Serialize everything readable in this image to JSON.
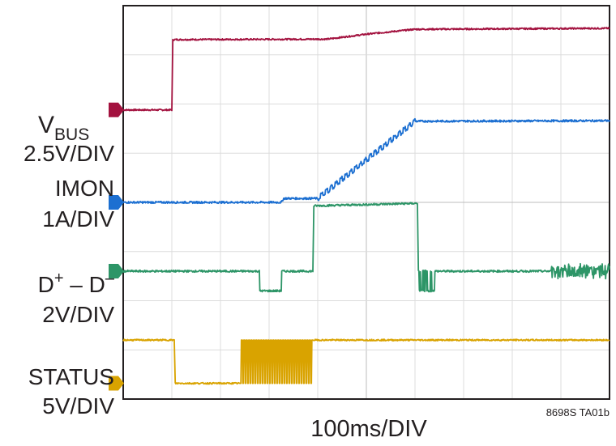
{
  "chart_data": {
    "type": "line",
    "title": "",
    "xlabel": "100ms/DIV",
    "footnote": "8698S TA01b",
    "grid": true,
    "x_divisions": 10,
    "y_divisions": 8,
    "xlim": [
      0,
      10
    ],
    "ylim": [
      0,
      8
    ],
    "series": [
      {
        "key": "vbus",
        "name_main": "V",
        "name_sub": "BUS",
        "scale": "2.5V/DIV",
        "color": "#a3123f",
        "marker_y": 5.88,
        "points": [
          [
            0,
            5.88
          ],
          [
            1.0,
            5.88
          ],
          [
            1.02,
            7.3
          ],
          [
            1.05,
            7.31
          ],
          [
            4.2,
            7.32
          ],
          [
            5.0,
            7.42
          ],
          [
            6.0,
            7.52
          ],
          [
            10,
            7.54
          ]
        ],
        "noise": 0.015
      },
      {
        "key": "imon",
        "name_main": "IMON",
        "scale": "1A/DIV",
        "color": "#1c6fd1",
        "marker_y": 4.0,
        "points": [
          [
            0,
            4.0
          ],
          [
            3.25,
            4.0
          ],
          [
            3.3,
            4.08
          ],
          [
            4.0,
            4.08
          ],
          [
            6.0,
            5.65
          ],
          [
            10,
            5.66
          ]
        ],
        "noise": 0.02
      },
      {
        "key": "dpdm",
        "name_main": "D",
        "name_sup1": "+",
        "name_mid": " – D",
        "name_sup2": "–",
        "scale": "2V/DIV",
        "color": "#2d9567",
        "marker_y": 2.6,
        "points": [
          [
            0,
            2.6
          ],
          [
            2.8,
            2.6
          ],
          [
            2.8,
            2.2
          ],
          [
            3.25,
            2.2
          ],
          [
            3.25,
            2.6
          ],
          [
            3.9,
            2.6
          ],
          [
            3.92,
            3.93
          ],
          [
            6.05,
            3.98
          ],
          [
            6.07,
            2.6
          ],
          [
            10,
            2.6
          ]
        ],
        "noise": 0.02
      },
      {
        "key": "status",
        "name_main": "STATUS",
        "scale": "5V/DIV",
        "color": "#d9a300",
        "marker_y": 0.32,
        "points": [
          [
            0,
            1.2
          ],
          [
            1.05,
            1.2
          ],
          [
            1.07,
            0.32
          ],
          [
            2.4,
            0.32
          ],
          [
            3.9,
            1.2
          ],
          [
            10,
            1.2
          ]
        ],
        "noise": 0.015
      }
    ]
  }
}
